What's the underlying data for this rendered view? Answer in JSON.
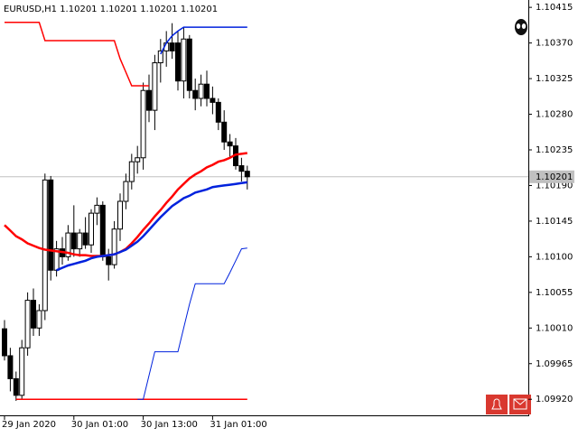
{
  "chart_data": {
    "type": "candlestick",
    "title": "EURUSD,H1  1.10201 1.10201 1.10201 1.10201",
    "categories": [
      "29 Jan 2020",
      null,
      null,
      null,
      null,
      null,
      null,
      null,
      null,
      null,
      null,
      null,
      "30 Jan 01:00",
      null,
      null,
      null,
      null,
      null,
      null,
      null,
      null,
      null,
      null,
      null,
      "30 Jan 13:00",
      null,
      null,
      null,
      null,
      null,
      null,
      null,
      null,
      null,
      null,
      null,
      "31 Jan 01:00",
      null,
      null,
      null,
      null,
      null,
      null
    ],
    "open": [
      1.10009,
      1.09975,
      1.09946,
      1.09925,
      1.09985,
      1.10045,
      1.1001,
      1.10032,
      1.10197,
      1.10083,
      1.1011,
      1.101,
      1.1013,
      1.1011,
      1.1013,
      1.10115,
      1.10155,
      1.10165,
      1.101,
      1.1009,
      1.10135,
      1.1017,
      1.10195,
      1.1022,
      1.10225,
      1.1031,
      1.10285,
      1.10345,
      1.1036,
      1.1037,
      1.1037,
      1.10322,
      1.10375,
      1.1031,
      1.103,
      1.10318,
      1.103,
      1.10295,
      1.1027,
      1.10245,
      1.1024,
      1.10215,
      1.10208
    ],
    "high": [
      1.1002,
      1.09985,
      1.09955,
      1.09995,
      1.10055,
      1.1006,
      1.1004,
      1.10205,
      1.10202,
      1.1012,
      1.10125,
      1.1014,
      1.10165,
      1.10135,
      1.1015,
      1.1016,
      1.10175,
      1.1017,
      1.1011,
      1.10145,
      1.1018,
      1.10205,
      1.1023,
      1.1024,
      1.1032,
      1.1033,
      1.10355,
      1.10375,
      1.10385,
      1.10395,
      1.10385,
      1.1039,
      1.1038,
      1.10325,
      1.1033,
      1.10335,
      1.10315,
      1.103,
      1.10285,
      1.10255,
      1.1025,
      1.10225,
      1.10215
    ],
    "low": [
      1.09969,
      1.0993,
      1.09918,
      1.0992,
      1.09975,
      1.1,
      1.1,
      1.1002,
      1.1007,
      1.10075,
      1.1009,
      1.10095,
      1.101,
      1.101,
      1.1011,
      1.10105,
      1.1014,
      1.10095,
      1.1007,
      1.10085,
      1.1012,
      1.1016,
      1.10185,
      1.10205,
      1.1021,
      1.1027,
      1.1026,
      1.1032,
      1.1034,
      1.1035,
      1.1031,
      1.103,
      1.103,
      1.10285,
      1.1029,
      1.1029,
      1.1028,
      1.1026,
      1.10235,
      1.10225,
      1.1021,
      1.10195,
      1.10185
    ],
    "close": [
      1.09975,
      1.09946,
      1.09925,
      1.09985,
      1.10045,
      1.1001,
      1.10032,
      1.10197,
      1.10083,
      1.1011,
      1.101,
      1.1013,
      1.1011,
      1.1013,
      1.10115,
      1.10155,
      1.10165,
      1.101,
      1.1009,
      1.10135,
      1.1017,
      1.10195,
      1.1022,
      1.10225,
      1.1031,
      1.10285,
      1.10345,
      1.1036,
      1.1037,
      1.1036,
      1.10322,
      1.10375,
      1.1031,
      1.103,
      1.10318,
      1.103,
      1.10295,
      1.1027,
      1.10245,
      1.1024,
      1.10215,
      1.10208,
      1.10201
    ],
    "series": [
      {
        "color": "#ff0000",
        "width": 2.5,
        "values": [
          1.1014,
          1.10133,
          1.10126,
          1.10122,
          1.10117,
          1.10114,
          1.10111,
          1.10109,
          1.10108,
          1.10107,
          1.10106,
          1.10105,
          1.10103,
          1.10102,
          1.10102,
          1.10101,
          1.10101,
          1.10101,
          1.10102,
          1.10103,
          1.10106,
          1.1011,
          1.10117,
          1.10125,
          1.10134,
          1.10142,
          1.10151,
          1.10159,
          1.10168,
          1.10176,
          1.10185,
          1.10192,
          1.10199,
          1.10204,
          1.10208,
          1.10213,
          1.10216,
          1.1022,
          1.10222,
          1.10225,
          1.10229,
          1.1023,
          1.10231
        ]
      },
      {
        "color": "#0022dd",
        "width": 2.5,
        "values": [
          null,
          null,
          null,
          null,
          null,
          null,
          null,
          null,
          null,
          1.10083,
          1.10086,
          1.10089,
          1.10091,
          1.10093,
          1.10095,
          1.10098,
          1.101,
          1.10101,
          1.10102,
          1.10103,
          1.10106,
          1.10109,
          1.10114,
          1.10119,
          1.10126,
          1.10134,
          1.10142,
          1.1015,
          1.10157,
          1.10164,
          1.10169,
          1.10174,
          1.10177,
          1.10181,
          1.10183,
          1.10185,
          1.10188,
          1.10189,
          1.1019,
          1.10191,
          1.10192,
          1.10193,
          1.10194
        ]
      },
      {
        "color": "#ff0000",
        "width": 1.5,
        "values": [
          1.10396,
          1.10396,
          1.10396,
          1.10396,
          1.10396,
          1.10396,
          1.10396,
          1.10373,
          1.10373,
          1.10373,
          1.10373,
          1.10373,
          1.10373,
          1.10373,
          1.10373,
          1.10373,
          1.10373,
          1.10373,
          1.10373,
          1.10373,
          1.1035,
          1.10333,
          1.10316,
          1.10316,
          1.10316,
          1.10316,
          null,
          null,
          null,
          null,
          null,
          null,
          null,
          null,
          null,
          null,
          null,
          null,
          null,
          null,
          null,
          null,
          null
        ]
      },
      {
        "color": "#ff0000",
        "width": 1.5,
        "values": [
          null,
          null,
          1.0992,
          1.0992,
          1.0992,
          1.0992,
          1.0992,
          1.0992,
          1.0992,
          1.0992,
          1.0992,
          1.0992,
          1.0992,
          1.0992,
          1.0992,
          1.0992,
          1.0992,
          1.0992,
          1.0992,
          1.0992,
          1.0992,
          1.0992,
          1.0992,
          1.0992,
          1.0992,
          1.0992,
          1.0992,
          1.0992,
          1.0992,
          1.0992,
          1.0992,
          1.0992,
          1.0992,
          1.0992,
          1.0992,
          1.0992,
          1.0992,
          1.0992,
          1.0992,
          1.0992,
          1.0992,
          1.0992,
          1.0992
        ]
      },
      {
        "color": "#0022dd",
        "width": 1,
        "values": [
          null,
          null,
          null,
          null,
          null,
          null,
          null,
          null,
          null,
          null,
          null,
          null,
          null,
          null,
          null,
          null,
          null,
          null,
          null,
          null,
          null,
          null,
          null,
          1.0992,
          1.0992,
          1.0995,
          1.0998,
          1.0998,
          1.0998,
          1.0998,
          1.0998,
          1.1001,
          1.1004,
          1.10066,
          1.10066,
          1.10066,
          1.10066,
          1.10066,
          1.10066,
          1.1008,
          1.10095,
          1.1011,
          1.10111
        ]
      },
      {
        "color": "#0022dd",
        "width": 1.5,
        "values": [
          null,
          null,
          null,
          null,
          null,
          null,
          null,
          null,
          null,
          null,
          null,
          null,
          null,
          null,
          null,
          null,
          null,
          null,
          null,
          null,
          null,
          null,
          null,
          null,
          null,
          null,
          null,
          1.10356,
          1.1037,
          1.10379,
          1.10385,
          1.1039,
          1.1039,
          1.1039,
          1.1039,
          1.1039,
          1.1039,
          1.1039,
          1.1039,
          1.1039,
          1.1039,
          1.1039,
          1.1039
        ]
      }
    ],
    "current_price": 1.10201,
    "ylim": [
      1.09902,
      1.10422
    ],
    "yticks": [
      1.10415,
      {
        "value": 1.1037,
        "label": "1.10370"
      },
      1.10325,
      {
        "value": 1.1028,
        "label": "1.10280"
      },
      1.10235,
      {
        "value": 1.1019,
        "label": "1.10190"
      },
      1.10145,
      {
        "value": 1.101,
        "label": "1.10100"
      },
      1.10055,
      {
        "value": 1.1001,
        "label": "1.10010"
      },
      1.09965,
      {
        "value": 1.0992,
        "label": "1.09920"
      }
    ]
  }
}
